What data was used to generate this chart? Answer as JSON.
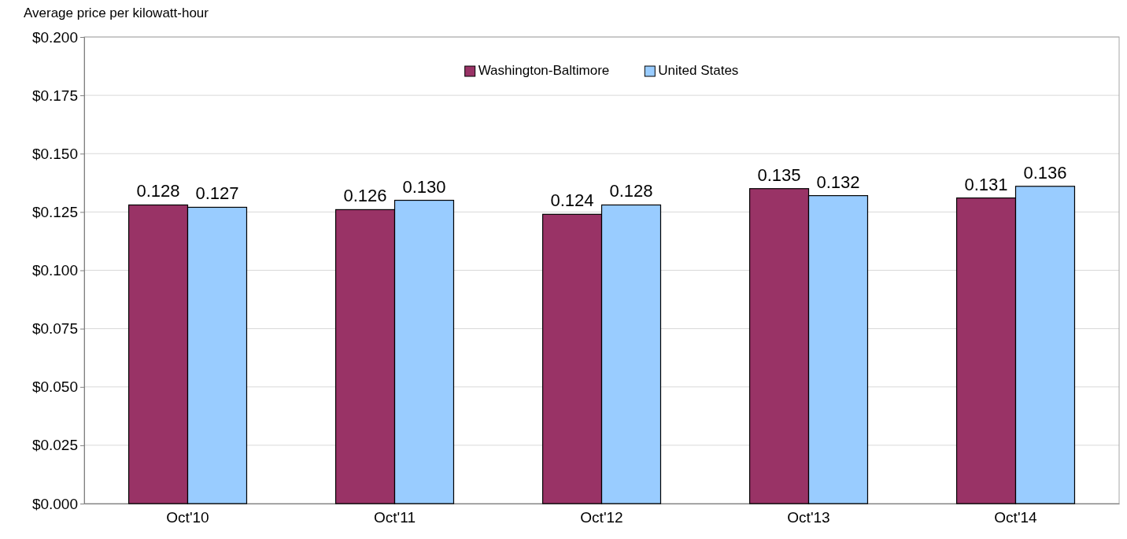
{
  "chart_data": {
    "type": "bar",
    "ylabel": "Average price per kilowatt-hour",
    "categories": [
      "Oct'10",
      "Oct'11",
      "Oct'12",
      "Oct'13",
      "Oct'14"
    ],
    "series": [
      {
        "name": "Washington-Baltimore",
        "color": "#993366",
        "values": [
          0.128,
          0.126,
          0.124,
          0.135,
          0.131
        ],
        "value_labels": [
          "0.128",
          "0.126",
          "0.124",
          "0.135",
          "0.131"
        ]
      },
      {
        "name": "United States",
        "color": "#99ccff",
        "values": [
          0.127,
          0.13,
          0.128,
          0.132,
          0.136
        ],
        "value_labels": [
          "0.127",
          "0.130",
          "0.128",
          "0.132",
          "0.136"
        ]
      }
    ],
    "ylim": [
      0,
      0.2
    ],
    "yticks": [
      {
        "value": 0,
        "label": "$0.000"
      },
      {
        "value": 0.025,
        "label": "$0.025"
      },
      {
        "value": 0.05,
        "label": "$0.050"
      },
      {
        "value": 0.075,
        "label": "$0.075"
      },
      {
        "value": 0.1,
        "label": "$0.100"
      },
      {
        "value": 0.125,
        "label": "$0.125"
      },
      {
        "value": 0.15,
        "label": "$0.150"
      },
      {
        "value": 0.175,
        "label": "$0.175"
      },
      {
        "value": 0.2,
        "label": "$0.200"
      }
    ],
    "grid": "y",
    "legend": "top"
  }
}
